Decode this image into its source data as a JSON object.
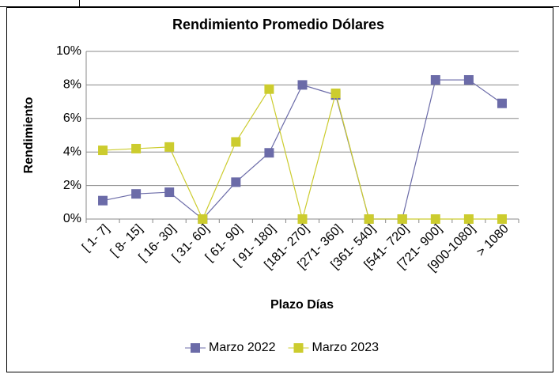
{
  "chart_data": {
    "type": "line",
    "title": "Rendimiento Promedio Dólares",
    "x_label": "Plazo Días",
    "y_label": "Rendimiento",
    "categories": [
      "[  1-   7]",
      "[  8-  15]",
      "[ 16-  30]",
      "[ 31-  60]",
      "[ 61-  90]",
      "[ 91- 180]",
      "[181- 270]",
      "[271- 360]",
      "[361- 540]",
      "[541- 720]",
      "[721- 900]",
      "[900-1080]",
      "> 1080"
    ],
    "series": [
      {
        "name": "Marzo 2022",
        "color": "#6b6ba8",
        "values": [
          1.1,
          1.5,
          1.6,
          0,
          2.2,
          3.95,
          8.0,
          7.4,
          0,
          0,
          8.3,
          8.3,
          6.9
        ]
      },
      {
        "name": "Marzo 2023",
        "color": "#cccc2e",
        "values": [
          4.1,
          4.2,
          4.3,
          0,
          4.6,
          7.75,
          0,
          7.5,
          0,
          0,
          0,
          0,
          0
        ]
      }
    ],
    "ylim": [
      0,
      10
    ],
    "yticks": [
      {
        "value": 0,
        "label": "0%"
      },
      {
        "value": 2,
        "label": "2%"
      },
      {
        "value": 4,
        "label": "4%"
      },
      {
        "value": 6,
        "label": "6%"
      },
      {
        "value": 8,
        "label": "8%"
      },
      {
        "value": 10,
        "label": "10%"
      }
    ],
    "grid": true,
    "legend": "bottom"
  }
}
